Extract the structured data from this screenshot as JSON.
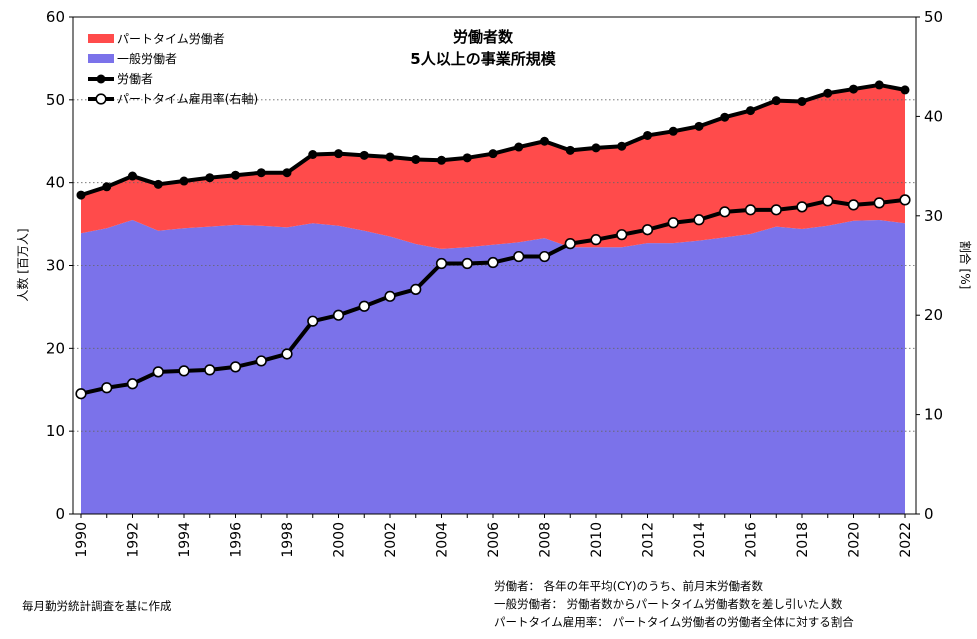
{
  "chart_data": {
    "type": "area",
    "title": "労働者数",
    "subtitle": "5人以上の事業所規模",
    "ylabel": "人数 [百万人]",
    "y2label": "割合 [%]",
    "ylim": [
      0,
      60
    ],
    "y2lim": [
      0,
      50
    ],
    "yticks": [
      0,
      10,
      20,
      30,
      40,
      50,
      60
    ],
    "y2ticks": [
      0,
      10,
      20,
      30,
      40,
      50
    ],
    "grid": "horizontal-dotted",
    "legend_position": "top-left",
    "colors": {
      "part_time": "#ff4b4b",
      "general": "#7b72ea",
      "line": "#000000",
      "marker_fill": "#ffffff"
    },
    "x": [
      1990,
      1991,
      1992,
      1993,
      1994,
      1995,
      1996,
      1997,
      1998,
      1999,
      2000,
      2001,
      2002,
      2003,
      2004,
      2005,
      2006,
      2007,
      2008,
      2009,
      2010,
      2011,
      2012,
      2013,
      2014,
      2015,
      2016,
      2017,
      2018,
      2019,
      2020,
      2021,
      2022
    ],
    "xticks": [
      "1990",
      "1992",
      "1994",
      "1996",
      "1998",
      "2000",
      "2002",
      "2004",
      "2006",
      "2008",
      "2010",
      "2012",
      "2014",
      "2016",
      "2018",
      "2020",
      "2022"
    ],
    "series": [
      {
        "name": "パートタイム労働者",
        "kind": "area",
        "axis": "left",
        "values": [
          4.6,
          5.0,
          5.3,
          5.6,
          5.7,
          5.9,
          6.0,
          6.4,
          6.6,
          8.3,
          8.7,
          9.1,
          9.6,
          10.2,
          10.7,
          10.8,
          11.0,
          11.5,
          11.7,
          11.7,
          12.0,
          12.2,
          13.0,
          13.5,
          13.8,
          14.5,
          14.9,
          15.2,
          15.4,
          16.0,
          15.9,
          16.3,
          16.1
        ]
      },
      {
        "name": "一般労働者",
        "kind": "area",
        "axis": "left",
        "values": [
          33.9,
          34.5,
          35.5,
          34.2,
          34.5,
          34.7,
          34.9,
          34.8,
          34.6,
          35.1,
          34.8,
          34.2,
          33.5,
          32.6,
          32.0,
          32.2,
          32.5,
          32.8,
          33.3,
          32.2,
          32.2,
          32.2,
          32.7,
          32.7,
          33.0,
          33.4,
          33.8,
          34.7,
          34.4,
          34.8,
          35.4,
          35.5,
          35.1
        ]
      },
      {
        "name": "労働者",
        "kind": "line",
        "axis": "left",
        "values": [
          38.5,
          39.5,
          40.8,
          39.8,
          40.2,
          40.6,
          40.9,
          41.2,
          41.2,
          43.4,
          43.5,
          43.3,
          43.1,
          42.8,
          42.7,
          43.0,
          43.5,
          44.3,
          45.0,
          43.9,
          44.2,
          44.4,
          45.7,
          46.2,
          46.8,
          47.9,
          48.7,
          49.9,
          49.8,
          50.8,
          51.3,
          51.8,
          51.2
        ]
      },
      {
        "name": "パートタイム雇用率(右軸)",
        "kind": "line-marker",
        "axis": "right",
        "values": [
          12.1,
          12.7,
          13.1,
          14.3,
          14.4,
          14.5,
          14.8,
          15.4,
          16.1,
          19.4,
          20.0,
          20.9,
          21.9,
          22.6,
          25.2,
          25.2,
          25.3,
          25.9,
          25.9,
          27.2,
          27.6,
          28.1,
          28.6,
          29.3,
          29.6,
          30.4,
          30.6,
          30.6,
          30.9,
          31.5,
          31.1,
          31.3,
          31.6
        ]
      }
    ]
  },
  "notes": [
    {
      "term": "労働者：",
      "desc": "各年の年平均(CY)のうち、前月末労働者数"
    },
    {
      "term": "一般労働者：",
      "desc": "労働者数からパートタイム労働者数を差し引いた人数"
    },
    {
      "term": "パートタイム雇用率：",
      "desc": "パートタイム労働者の労働者全体に対する割合"
    }
  ],
  "source": "毎月勤労統計調査を基に作成"
}
